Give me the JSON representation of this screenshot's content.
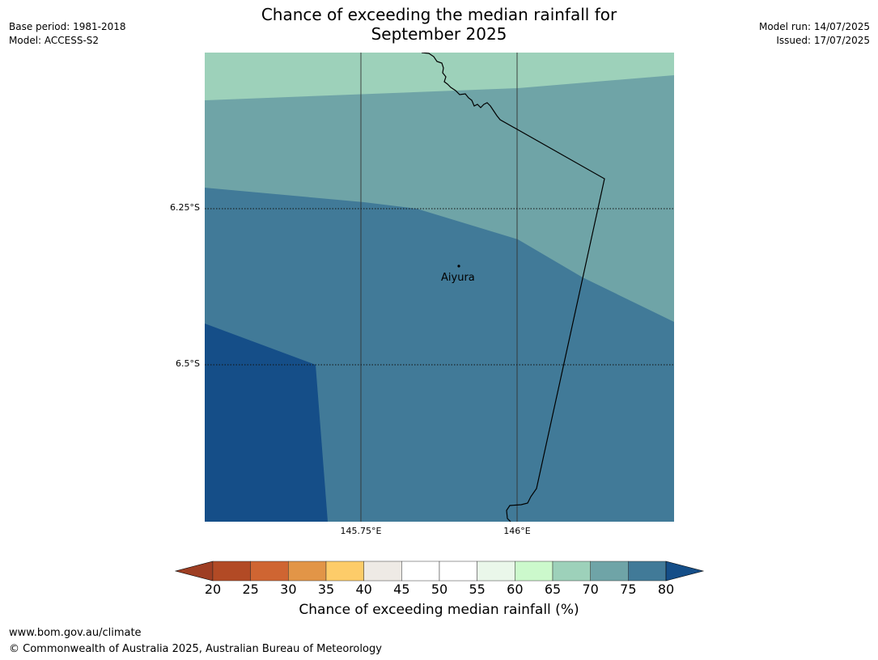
{
  "header": {
    "title_line1": "Chance of exceeding the median rainfall for",
    "title_line2": "September 2025",
    "base_period": "Base period: 1981-2018",
    "model": "Model: ACCESS-S2",
    "model_run": "Model run: 14/07/2025",
    "issued": "Issued: 17/07/2025"
  },
  "map": {
    "lat_labels": [
      "6.25°S",
      "6.5°S"
    ],
    "lon_labels": [
      "145.75°E",
      "146°E"
    ],
    "place": {
      "name": "Aiyura"
    },
    "region_colors": {
      "band_65_70": "#9dd1ba",
      "band_70_75": "#6fa4a7",
      "band_75_80": "#417a98",
      "band_above_80": "#154e88"
    }
  },
  "colorbar": {
    "label": "Chance of exceeding median rainfall (%)",
    "ticks": [
      "20",
      "25",
      "30",
      "35",
      "40",
      "45",
      "50",
      "55",
      "60",
      "65",
      "70",
      "75",
      "80"
    ],
    "colors": [
      "#b24a25",
      "#cf6532",
      "#e29547",
      "#fdcc69",
      "#eeeae5",
      "#ffffff",
      "#ffffff",
      "#eaf7ea",
      "#ccf9cc",
      "#9dd1ba",
      "#6fa4a7",
      "#417a98"
    ],
    "under_color": "#9e3e23",
    "over_color": "#154e88"
  },
  "footer": {
    "url": "www.bom.gov.au/climate",
    "copyright": "© Commonwealth of Australia 2025, Australian Bureau of Meteorology"
  }
}
